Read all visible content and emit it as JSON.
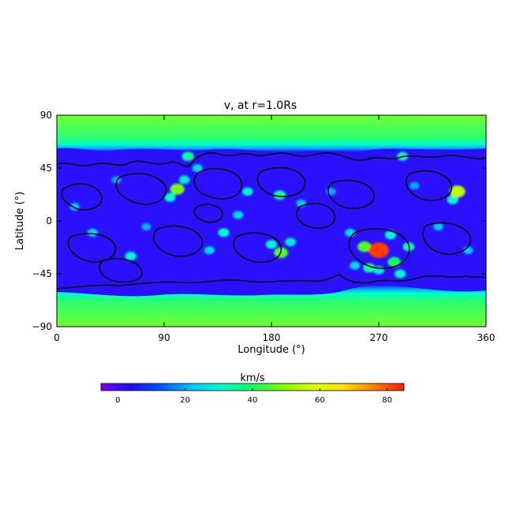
{
  "chart_data": {
    "type": "heatmap",
    "title": "v, at r=1.0Rs",
    "xlabel": "Longitude (°)",
    "ylabel": "Latitude (°)",
    "xlim": [
      0,
      360
    ],
    "ylim": [
      -90,
      90
    ],
    "x_ticks": [
      "0",
      "90",
      "180",
      "270",
      "360"
    ],
    "x_tick_values": [
      0,
      90,
      180,
      270,
      360
    ],
    "y_ticks": [
      "90",
      "45",
      "0",
      "-45",
      "-90"
    ],
    "y_tick_values": [
      90,
      45,
      0,
      -45,
      -90
    ],
    "grid": false,
    "colorbar": {
      "label": "km/s",
      "range": [
        -5,
        85
      ],
      "ticks": [
        "0",
        "20",
        "40",
        "60",
        "80"
      ],
      "tick_values": [
        0,
        20,
        40,
        60,
        80
      ],
      "colors": [
        "#7a00ff",
        "#1c0dff",
        "#0058ff",
        "#00c8ff",
        "#00ffc8",
        "#10ff60",
        "#80ff00",
        "#d8ff00",
        "#ffe000",
        "#ff8000",
        "#ff1a00"
      ]
    },
    "features": [
      {
        "kind": "band",
        "name": "north-polar-fast-wind",
        "lat_range": [
          60,
          90
        ],
        "value": 45
      },
      {
        "kind": "band",
        "name": "south-polar-fast-wind",
        "lat_range": [
          -90,
          -60
        ],
        "value": 45
      },
      {
        "kind": "background",
        "name": "slow-wind-belt",
        "lat_range": [
          -60,
          60
        ],
        "value": 5
      },
      {
        "kind": "spot",
        "lon": 270,
        "lat": -25,
        "value": 82
      },
      {
        "kind": "spot",
        "lon": 258,
        "lat": -22,
        "value": 45
      },
      {
        "kind": "spot",
        "lon": 283,
        "lat": -35,
        "value": 40
      },
      {
        "kind": "spot",
        "lon": 262,
        "lat": -40,
        "value": 35
      },
      {
        "kind": "spot",
        "lon": 280,
        "lat": -12,
        "value": 30
      },
      {
        "kind": "spot",
        "lon": 295,
        "lat": -22,
        "value": 32
      },
      {
        "kind": "spot",
        "lon": 250,
        "lat": -38,
        "value": 25
      },
      {
        "kind": "spot",
        "lon": 288,
        "lat": -45,
        "value": 30
      },
      {
        "kind": "spot",
        "lon": 270,
        "lat": -42,
        "value": 28
      },
      {
        "kind": "spot",
        "lon": 246,
        "lat": -10,
        "value": 25
      },
      {
        "kind": "spot",
        "lon": 336,
        "lat": 25,
        "value": 55
      },
      {
        "kind": "spot",
        "lon": 332,
        "lat": 18,
        "value": 30
      },
      {
        "kind": "spot",
        "lon": 101,
        "lat": 27,
        "value": 48
      },
      {
        "kind": "spot",
        "lon": 95,
        "lat": 20,
        "value": 30
      },
      {
        "kind": "spot",
        "lon": 107,
        "lat": 35,
        "value": 28
      },
      {
        "kind": "spot",
        "lon": 188,
        "lat": -27,
        "value": 45
      },
      {
        "kind": "spot",
        "lon": 180,
        "lat": -20,
        "value": 30
      },
      {
        "kind": "spot",
        "lon": 196,
        "lat": -18,
        "value": 28
      },
      {
        "kind": "spot",
        "lon": 187,
        "lat": 22,
        "value": 35
      },
      {
        "kind": "spot",
        "lon": 160,
        "lat": 25,
        "value": 28
      },
      {
        "kind": "spot",
        "lon": 62,
        "lat": -30,
        "value": 30
      },
      {
        "kind": "spot",
        "lon": 30,
        "lat": -10,
        "value": 25
      },
      {
        "kind": "spot",
        "lon": 15,
        "lat": 12,
        "value": 22
      },
      {
        "kind": "spot",
        "lon": 140,
        "lat": -10,
        "value": 30
      },
      {
        "kind": "spot",
        "lon": 128,
        "lat": -25,
        "value": 25
      },
      {
        "kind": "spot",
        "lon": 152,
        "lat": 5,
        "value": 25
      },
      {
        "kind": "spot",
        "lon": 118,
        "lat": 45,
        "value": 25
      },
      {
        "kind": "spot",
        "lon": 110,
        "lat": 55,
        "value": 35
      },
      {
        "kind": "spot",
        "lon": 290,
        "lat": 55,
        "value": 30
      },
      {
        "kind": "spot",
        "lon": 205,
        "lat": 15,
        "value": 22
      },
      {
        "kind": "spot",
        "lon": 345,
        "lat": -25,
        "value": 22
      },
      {
        "kind": "spot",
        "lon": 320,
        "lat": -5,
        "value": 22
      },
      {
        "kind": "spot",
        "lon": 50,
        "lat": 35,
        "value": 20
      },
      {
        "kind": "spot",
        "lon": 75,
        "lat": -5,
        "value": 20
      },
      {
        "kind": "spot",
        "lon": 300,
        "lat": 30,
        "value": 20
      },
      {
        "kind": "spot",
        "lon": 230,
        "lat": 25,
        "value": 20
      }
    ]
  }
}
